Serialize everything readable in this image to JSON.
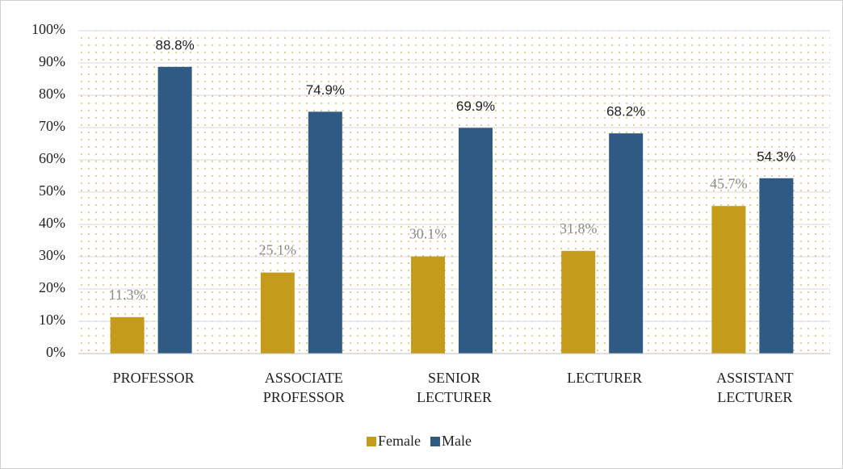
{
  "chart_data": {
    "type": "bar",
    "categories": [
      "PROFESSOR",
      "ASSOCIATE PROFESSOR",
      "SENIOR LECTURER",
      "LECTURER",
      "ASSISTANT LECTURER"
    ],
    "series": [
      {
        "name": "Female",
        "color": "#c59b1c",
        "values": [
          11.3,
          25.1,
          30.1,
          31.8,
          45.7
        ],
        "value_labels": [
          "11.3%",
          "25.1%",
          "30.1%",
          "31.8%",
          "45.7%"
        ]
      },
      {
        "name": "Male",
        "color": "#2f5a83",
        "values": [
          88.8,
          74.9,
          69.9,
          68.2,
          54.3
        ],
        "value_labels": [
          "88.8%",
          "74.9%",
          "69.9%",
          "68.2%",
          "54.3%"
        ]
      }
    ],
    "ylim": [
      0,
      100
    ],
    "yticks": [
      {
        "value": 0,
        "label": "0%"
      },
      {
        "value": 10,
        "label": "10%"
      },
      {
        "value": 20,
        "label": "20%"
      },
      {
        "value": 30,
        "label": "30%"
      },
      {
        "value": 40,
        "label": "40%"
      },
      {
        "value": 50,
        "label": "50%"
      },
      {
        "value": 60,
        "label": "60%"
      },
      {
        "value": 70,
        "label": "70%"
      },
      {
        "value": 80,
        "label": "80%"
      },
      {
        "value": 90,
        "label": "90%"
      },
      {
        "value": 100,
        "label": "100%"
      }
    ],
    "grid": true,
    "legend": "bottom"
  }
}
